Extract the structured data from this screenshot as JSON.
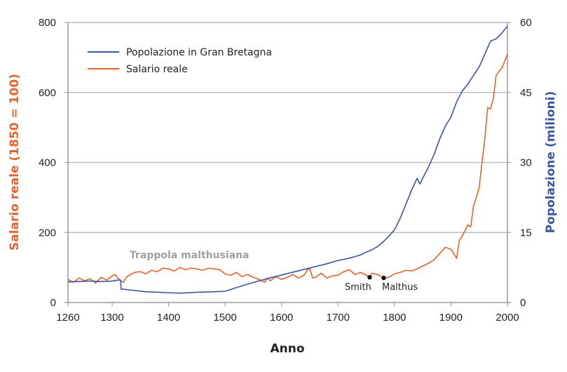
{
  "chart_data": {
    "type": "line",
    "title": "",
    "xlabel": "Anno",
    "ylabel_left": "Salario reale (1850 = 100)",
    "ylabel_right": "Popolazione (milioni)",
    "xlim": [
      1260,
      2000
    ],
    "ylim_left": [
      0,
      800
    ],
    "ylim_right": [
      0,
      60
    ],
    "x_ticks": [
      1260,
      1300,
      1400,
      1500,
      1600,
      1700,
      1800,
      1900,
      2000
    ],
    "y_ticks_left": [
      0,
      200,
      400,
      600,
      800
    ],
    "y_ticks_right": [
      0,
      15,
      30,
      45,
      60
    ],
    "grid": "horizontal",
    "legend_position": "top-left",
    "series": [
      {
        "name": "Popolazione in Gran Bretagna",
        "axis": "right",
        "color": "#3b56a3",
        "x": [
          1260,
          1270,
          1280,
          1290,
          1300,
          1310,
          1315,
          1316,
          1330,
          1360,
          1400,
          1420,
          1450,
          1480,
          1500,
          1520,
          1550,
          1580,
          1600,
          1630,
          1650,
          1680,
          1700,
          1720,
          1740,
          1750,
          1760,
          1770,
          1780,
          1790,
          1800,
          1810,
          1820,
          1830,
          1840,
          1845,
          1850,
          1860,
          1870,
          1880,
          1890,
          1900,
          1910,
          1920,
          1930,
          1940,
          1950,
          1960,
          1970,
          1980,
          1990,
          2000
        ],
        "values": [
          4.4,
          4.5,
          4.6,
          4.5,
          4.6,
          4.8,
          4.8,
          2.9,
          2.7,
          2.3,
          2.1,
          2.0,
          2.2,
          2.3,
          2.4,
          3.2,
          4.3,
          5.3,
          5.9,
          6.8,
          7.4,
          8.3,
          9.0,
          9.5,
          10.2,
          10.8,
          11.3,
          12.0,
          13.0,
          14.2,
          15.6,
          18.0,
          21.0,
          24.0,
          26.6,
          25.4,
          26.6,
          29.0,
          31.7,
          35.0,
          37.8,
          39.7,
          43.0,
          45.3,
          46.8,
          48.7,
          50.5,
          53.2,
          56.0,
          56.5,
          57.7,
          59.2
        ]
      },
      {
        "name": "Salario reale",
        "axis": "left",
        "color": "#e8622c",
        "x": [
          1260,
          1265,
          1270,
          1275,
          1280,
          1285,
          1290,
          1295,
          1300,
          1305,
          1310,
          1315,
          1320,
          1325,
          1330,
          1340,
          1350,
          1360,
          1370,
          1380,
          1390,
          1400,
          1410,
          1420,
          1430,
          1440,
          1450,
          1460,
          1470,
          1480,
          1490,
          1500,
          1510,
          1520,
          1530,
          1540,
          1550,
          1560,
          1570,
          1575,
          1580,
          1590,
          1600,
          1610,
          1620,
          1630,
          1640,
          1645,
          1650,
          1655,
          1660,
          1670,
          1680,
          1690,
          1700,
          1710,
          1720,
          1730,
          1740,
          1750,
          1756,
          1760,
          1770,
          1780,
          1790,
          1800,
          1810,
          1820,
          1830,
          1840,
          1850,
          1860,
          1870,
          1880,
          1890,
          1900,
          1905,
          1910,
          1915,
          1920,
          1930,
          1935,
          1940,
          1945,
          1950,
          1955,
          1960,
          1965,
          1970,
          1975,
          1980,
          1985,
          1990,
          2000
        ],
        "values": [
          66,
          58,
          70,
          62,
          68,
          56,
          72,
          64,
          76,
          80,
          70,
          62,
          58,
          72,
          78,
          86,
          88,
          82,
          92,
          88,
          98,
          96,
          90,
          100,
          94,
          98,
          96,
          92,
          98,
          96,
          94,
          82,
          78,
          86,
          74,
          80,
          72,
          66,
          58,
          70,
          62,
          74,
          66,
          72,
          80,
          70,
          78,
          92,
          98,
          70,
          72,
          84,
          70,
          76,
          78,
          88,
          94,
          80,
          86,
          78,
          72,
          84,
          80,
          70,
          72,
          82,
          86,
          92,
          90,
          96,
          104,
          112,
          122,
          140,
          158,
          152,
          140,
          126,
          178,
          190,
          222,
          216,
          277,
          300,
          329,
          400,
          469,
          557,
          553,
          583,
          649,
          660,
          669,
          709
        ]
      }
    ],
    "annotations": [
      {
        "text": "Trappola malthusiana"
      },
      {
        "text": "Smith",
        "x": 1756
      },
      {
        "text": "Malthus",
        "x": 1781
      }
    ]
  }
}
